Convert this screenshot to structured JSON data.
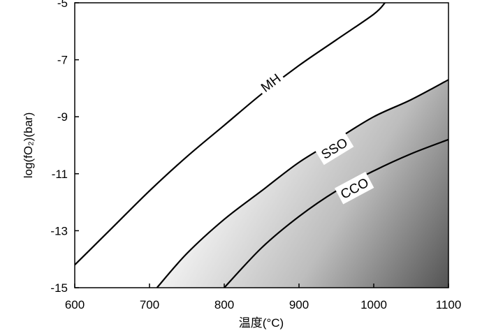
{
  "chart_data": {
    "type": "line",
    "xlabel": "温度(°C)",
    "ylabel": "log(fO₂)(bar)",
    "xlim": [
      600,
      1100
    ],
    "ylim": [
      -15,
      -5
    ],
    "xticks": [
      600,
      700,
      800,
      900,
      1000,
      1100
    ],
    "yticks": [
      -15,
      -13,
      -11,
      -9,
      -7,
      -5
    ],
    "grid": false,
    "shading": "grey gradient below the SSO curve, darkening toward high temperature / low fO2",
    "series": [
      {
        "name": "MH",
        "x": [
          600,
          650,
          700,
          750,
          800,
          850,
          900,
          950,
          1000,
          1015
        ],
        "y": [
          -14.2,
          -12.9,
          -11.6,
          -10.4,
          -9.3,
          -8.2,
          -7.2,
          -6.3,
          -5.4,
          -5.0
        ]
      },
      {
        "name": "SSO",
        "x": [
          710,
          750,
          800,
          850,
          900,
          950,
          1000,
          1050,
          1100
        ],
        "y": [
          -15.0,
          -13.8,
          -12.6,
          -11.6,
          -10.6,
          -9.8,
          -9.0,
          -8.4,
          -7.7
        ]
      },
      {
        "name": "CCO",
        "x": [
          800,
          850,
          900,
          950,
          1000,
          1050,
          1100
        ],
        "y": [
          -15.0,
          -13.6,
          -12.5,
          -11.6,
          -10.9,
          -10.3,
          -9.8
        ]
      }
    ],
    "curve_labels": [
      {
        "text": "MH",
        "x": 862,
        "y": -7.8
      },
      {
        "text": "SSO",
        "x": 947,
        "y": -10.1
      },
      {
        "text": "CCO",
        "x": 974,
        "y": -11.5
      }
    ]
  }
}
